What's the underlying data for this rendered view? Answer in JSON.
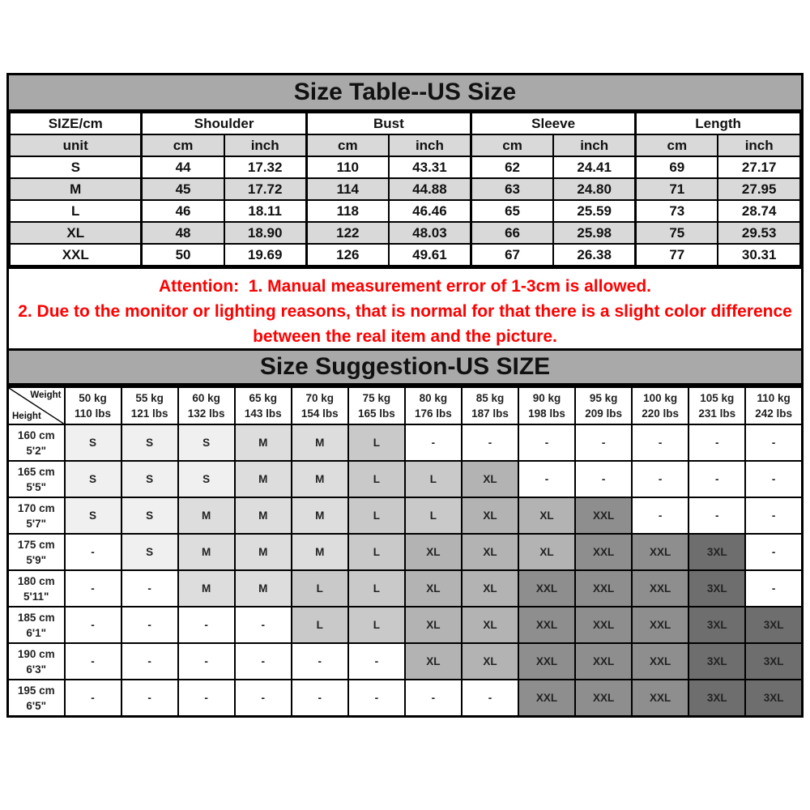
{
  "size_table": {
    "title": "Size Table--US Size",
    "corner_label": "SIZE/cm",
    "unit_label": "unit",
    "group_headers": [
      "Shoulder",
      "Bust",
      "Sleeve",
      "Length"
    ],
    "unit_headers": [
      "cm",
      "inch",
      "cm",
      "inch",
      "cm",
      "inch",
      "cm",
      "inch"
    ],
    "rows": [
      {
        "size": "S",
        "values": [
          "44",
          "17.32",
          "110",
          "43.31",
          "62",
          "24.41",
          "69",
          "27.17"
        ]
      },
      {
        "size": "M",
        "values": [
          "45",
          "17.72",
          "114",
          "44.88",
          "63",
          "24.80",
          "71",
          "27.95"
        ]
      },
      {
        "size": "L",
        "values": [
          "46",
          "18.11",
          "118",
          "46.46",
          "65",
          "25.59",
          "73",
          "28.74"
        ]
      },
      {
        "size": "XL",
        "values": [
          "48",
          "18.90",
          "122",
          "48.03",
          "66",
          "25.98",
          "75",
          "29.53"
        ]
      },
      {
        "size": "XXL",
        "values": [
          "50",
          "19.69",
          "126",
          "49.61",
          "67",
          "26.38",
          "77",
          "30.31"
        ]
      }
    ]
  },
  "attention": {
    "line1": "Attention:  1. Manual measurement error of 1-3cm is allowed.",
    "line2": "2. Due to the monitor or lighting reasons, that is normal for that there is a slight color difference",
    "line3": "between the real item and the picture."
  },
  "size_suggestion": {
    "title": "Size Suggestion-US SIZE",
    "corner": {
      "top_label": "Weight",
      "bottom_label": "Height"
    },
    "weight_columns": [
      {
        "kg": "50 kg",
        "lbs": "110 lbs"
      },
      {
        "kg": "55 kg",
        "lbs": "121 lbs"
      },
      {
        "kg": "60 kg",
        "lbs": "132 lbs"
      },
      {
        "kg": "65 kg",
        "lbs": "143 lbs"
      },
      {
        "kg": "70 kg",
        "lbs": "154 lbs"
      },
      {
        "kg": "75 kg",
        "lbs": "165 lbs"
      },
      {
        "kg": "80 kg",
        "lbs": "176 lbs"
      },
      {
        "kg": "85 kg",
        "lbs": "187 lbs"
      },
      {
        "kg": "90 kg",
        "lbs": "198 lbs"
      },
      {
        "kg": "95 kg",
        "lbs": "209 lbs"
      },
      {
        "kg": "100 kg",
        "lbs": "220 lbs"
      },
      {
        "kg": "105 kg",
        "lbs": "231 lbs"
      },
      {
        "kg": "110 kg",
        "lbs": "242 lbs"
      }
    ],
    "rows": [
      {
        "height_cm": "160 cm",
        "height_ft": "5'2\"",
        "cells": [
          "S",
          "S",
          "S",
          "M",
          "M",
          "L",
          "-",
          "-",
          "-",
          "-",
          "-",
          "-",
          "-"
        ]
      },
      {
        "height_cm": "165 cm",
        "height_ft": "5'5\"",
        "cells": [
          "S",
          "S",
          "S",
          "M",
          "M",
          "L",
          "L",
          "XL",
          "-",
          "-",
          "-",
          "-",
          "-"
        ]
      },
      {
        "height_cm": "170 cm",
        "height_ft": "5'7\"",
        "cells": [
          "S",
          "S",
          "M",
          "M",
          "M",
          "L",
          "L",
          "XL",
          "XL",
          "XXL",
          "-",
          "-",
          "-"
        ]
      },
      {
        "height_cm": "175 cm",
        "height_ft": "5'9\"",
        "cells": [
          "-",
          "S",
          "M",
          "M",
          "M",
          "L",
          "XL",
          "XL",
          "XL",
          "XXL",
          "XXL",
          "3XL",
          "-"
        ]
      },
      {
        "height_cm": "180 cm",
        "height_ft": "5'11\"",
        "cells": [
          "-",
          "-",
          "M",
          "M",
          "L",
          "L",
          "XL",
          "XL",
          "XXL",
          "XXL",
          "XXL",
          "3XL",
          "-"
        ]
      },
      {
        "height_cm": "185 cm",
        "height_ft": "6'1\"",
        "cells": [
          "-",
          "-",
          "-",
          "-",
          "L",
          "L",
          "XL",
          "XL",
          "XXL",
          "XXL",
          "XXL",
          "3XL",
          "3XL"
        ]
      },
      {
        "height_cm": "190 cm",
        "height_ft": "6'3\"",
        "cells": [
          "-",
          "-",
          "-",
          "-",
          "-",
          "-",
          "XL",
          "XL",
          "XXL",
          "XXL",
          "XXL",
          "3XL",
          "3XL"
        ]
      },
      {
        "height_cm": "195 cm",
        "height_ft": "6'5\"",
        "cells": [
          "-",
          "-",
          "-",
          "-",
          "-",
          "-",
          "-",
          "-",
          "XXL",
          "XXL",
          "XXL",
          "3XL",
          "3XL"
        ]
      }
    ],
    "shade_colors": {
      "S": "#f0f0f0",
      "M": "#dddddd",
      "L": "#c9c9c9",
      "XL": "#b3b3b3",
      "XXL": "#8e8e8e",
      "3XL": "#6e6e6e",
      "-": "#ffffff"
    }
  },
  "colors": {
    "title_bar_bg": "#a9a9a9",
    "alt_row_bg": "#d9d9d9",
    "attention_red": "#ff0000",
    "border": "#000000",
    "corner_cell_bg": "#b2b2b2",
    "page_bg": "#ffffff"
  },
  "chart_data": [
    {
      "type": "table",
      "title": "Size Table--US Size",
      "columns": [
        "SIZE/cm",
        "Shoulder cm",
        "Shoulder inch",
        "Bust cm",
        "Bust inch",
        "Sleeve cm",
        "Sleeve inch",
        "Length cm",
        "Length inch"
      ],
      "rows": [
        [
          "S",
          44,
          17.32,
          110,
          43.31,
          62,
          24.41,
          69,
          27.17
        ],
        [
          "M",
          45,
          17.72,
          114,
          44.88,
          63,
          24.8,
          71,
          27.95
        ],
        [
          "L",
          46,
          18.11,
          118,
          46.46,
          65,
          25.59,
          73,
          28.74
        ],
        [
          "XL",
          48,
          18.9,
          122,
          48.03,
          66,
          25.98,
          75,
          29.53
        ],
        [
          "XXL",
          50,
          19.69,
          126,
          49.61,
          67,
          26.38,
          77,
          30.31
        ]
      ],
      "notes": [
        "Attention:  1. Manual measurement error of 1-3cm is allowed.",
        "2. Due to the monitor or lighting reasons, that is normal for that there is a slight color difference between the real item and the picture."
      ]
    },
    {
      "type": "table",
      "title": "Size Suggestion-US SIZE",
      "columns": [
        "Height \\ Weight",
        "50 kg / 110 lbs",
        "55 kg / 121 lbs",
        "60 kg / 132 lbs",
        "65 kg / 143 lbs",
        "70 kg / 154 lbs",
        "75 kg / 165 lbs",
        "80 kg / 176 lbs",
        "85 kg / 187 lbs",
        "90 kg / 198 lbs",
        "95 kg / 209 lbs",
        "100 kg / 220 lbs",
        "105 kg / 231 lbs",
        "110 kg / 242 lbs"
      ],
      "rows": [
        [
          "160 cm 5'2\"",
          "S",
          "S",
          "S",
          "M",
          "M",
          "L",
          "-",
          "-",
          "-",
          "-",
          "-",
          "-",
          "-"
        ],
        [
          "165 cm 5'5\"",
          "S",
          "S",
          "S",
          "M",
          "M",
          "L",
          "L",
          "XL",
          "-",
          "-",
          "-",
          "-",
          "-"
        ],
        [
          "170 cm 5'7\"",
          "S",
          "S",
          "M",
          "M",
          "M",
          "L",
          "L",
          "XL",
          "XL",
          "XXL",
          "-",
          "-",
          "-"
        ],
        [
          "175 cm 5'9\"",
          "-",
          "S",
          "M",
          "M",
          "M",
          "L",
          "XL",
          "XL",
          "XL",
          "XXL",
          "XXL",
          "3XL",
          "-"
        ],
        [
          "180 cm 5'11\"",
          "-",
          "-",
          "M",
          "M",
          "L",
          "L",
          "XL",
          "XL",
          "XXL",
          "XXL",
          "XXL",
          "3XL",
          "-"
        ],
        [
          "185 cm 6'1\"",
          "-",
          "-",
          "-",
          "-",
          "L",
          "L",
          "XL",
          "XL",
          "XXL",
          "XXL",
          "XXL",
          "3XL",
          "3XL"
        ],
        [
          "190 cm 6'3\"",
          "-",
          "-",
          "-",
          "-",
          "-",
          "-",
          "XL",
          "XL",
          "XXL",
          "XXL",
          "XXL",
          "3XL",
          "3XL"
        ],
        [
          "195 cm 6'5\"",
          "-",
          "-",
          "-",
          "-",
          "-",
          "-",
          "-",
          "-",
          "XXL",
          "XXL",
          "XXL",
          "3XL",
          "3XL"
        ]
      ]
    }
  ]
}
